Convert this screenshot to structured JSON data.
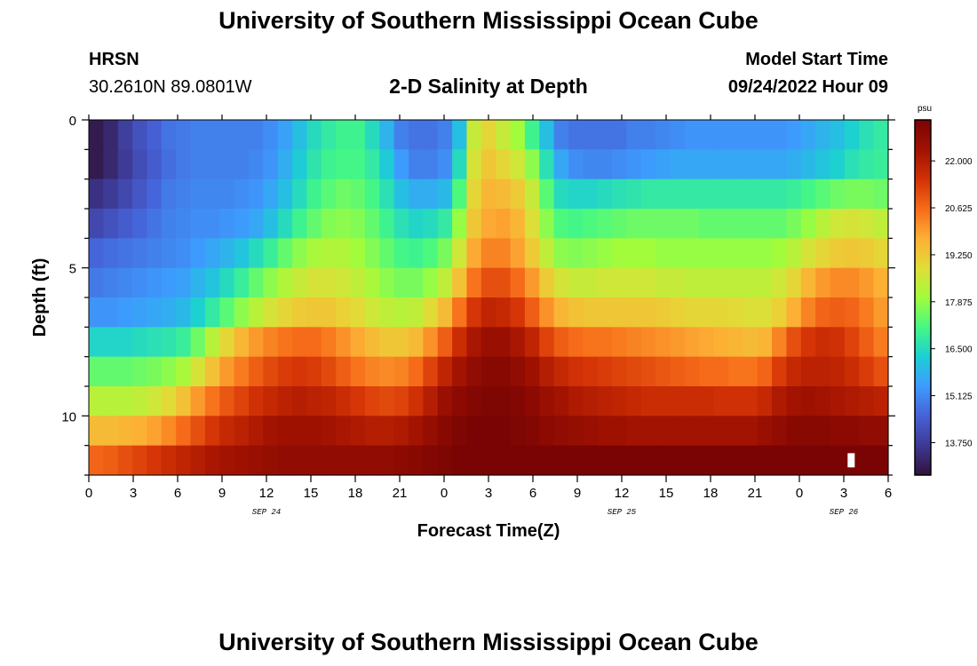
{
  "header": {
    "title": "University of Southern Mississippi Ocean Cube",
    "station": "HRSN",
    "coords": "30.2610N  89.0801W",
    "plot_title": "2-D Salinity at Depth",
    "model_start_label": "Model Start Time",
    "model_start_value": "09/24/2022 Hour 09"
  },
  "footer": {
    "title": "University of Southern Mississippi Ocean Cube"
  },
  "chart_data": {
    "type": "heatmap",
    "title": "2-D Salinity at Depth",
    "xlabel": "Forecast Time(Z)",
    "ylabel": "Depth (ft)",
    "x_hours": [
      0,
      54
    ],
    "x_tick_labels": [
      "0",
      "3",
      "6",
      "9",
      "12",
      "15",
      "18",
      "21",
      "0",
      "3",
      "6",
      "9",
      "12",
      "15",
      "18",
      "21",
      "0",
      "3",
      "6"
    ],
    "date_labels": [
      {
        "label": "SEP 24",
        "hour": 12
      },
      {
        "label": "SEP 25",
        "hour": 36
      },
      {
        "label": "SEP 26",
        "hour": 51
      }
    ],
    "ylim": [
      0,
      12
    ],
    "y_ticks": [
      0,
      5,
      10
    ],
    "y_minor_step": 1,
    "colorbar": {
      "unit": "psu",
      "vmin": 12.8,
      "vmax": 23.2,
      "tick_values": [
        13.75,
        15.125,
        16.5,
        17.875,
        19.25,
        20.625,
        22.0
      ],
      "tick_labels": [
        "13.750",
        "15.125",
        "16.500",
        "17.875",
        "19.250",
        "20.625",
        "22.000"
      ],
      "colors": [
        "#30123b",
        "#3e3994",
        "#4662d7",
        "#3e9bfe",
        "#1bcfd4",
        "#46f884",
        "#a2fc3c",
        "#e1dd37",
        "#fdaf35",
        "#f66b19",
        "#d23105",
        "#a11201",
        "#7a0403"
      ]
    },
    "depth_layers": [
      {
        "depth": 0.5,
        "values": [
          13.0,
          13.3,
          13.8,
          14.2,
          14.5,
          14.8,
          14.9,
          15.0,
          15.0,
          15.0,
          15.0,
          15.0,
          15.2,
          15.5,
          16.0,
          16.5,
          16.8,
          17.0,
          17.0,
          16.5,
          15.8,
          15.0,
          14.8,
          14.8,
          15.0,
          16.0,
          18.5,
          19.0,
          18.5,
          18.0,
          17.0,
          16.0,
          15.0,
          14.8,
          14.8,
          14.8,
          14.8,
          15.0,
          15.0,
          15.1,
          15.2,
          15.3,
          15.3,
          15.3,
          15.3,
          15.3,
          15.3,
          15.3,
          15.4,
          15.6,
          15.8,
          16.0,
          16.3,
          16.6,
          16.8
        ]
      },
      {
        "depth": 1.5,
        "values": [
          13.0,
          13.3,
          13.7,
          14.1,
          14.4,
          14.7,
          14.9,
          15.0,
          15.0,
          15.0,
          15.0,
          15.1,
          15.3,
          15.7,
          16.2,
          16.7,
          17.0,
          17.1,
          17.1,
          16.8,
          16.2,
          15.4,
          15.0,
          15.0,
          15.2,
          16.5,
          18.7,
          19.3,
          19.0,
          18.6,
          17.8,
          16.6,
          15.6,
          15.2,
          15.1,
          15.1,
          15.2,
          15.3,
          15.4,
          15.5,
          15.6,
          15.6,
          15.6,
          15.6,
          15.6,
          15.6,
          15.6,
          15.6,
          15.7,
          15.9,
          16.1,
          16.3,
          16.6,
          16.8,
          16.9
        ]
      },
      {
        "depth": 2.5,
        "values": [
          13.5,
          13.7,
          14.0,
          14.3,
          14.6,
          14.9,
          15.0,
          15.1,
          15.1,
          15.1,
          15.2,
          15.3,
          15.6,
          16.0,
          16.5,
          17.0,
          17.3,
          17.5,
          17.4,
          17.1,
          16.6,
          16.0,
          15.7,
          15.7,
          15.9,
          17.2,
          19.0,
          19.6,
          19.5,
          19.2,
          18.5,
          17.3,
          16.5,
          16.4,
          16.4,
          16.5,
          16.6,
          16.7,
          16.8,
          16.8,
          16.8,
          16.8,
          16.8,
          16.8,
          16.8,
          16.8,
          16.8,
          16.8,
          16.9,
          17.1,
          17.3,
          17.5,
          17.6,
          17.6,
          17.5
        ]
      },
      {
        "depth": 3.5,
        "values": [
          14.0,
          14.2,
          14.4,
          14.6,
          14.8,
          15.0,
          15.1,
          15.2,
          15.2,
          15.3,
          15.4,
          15.6,
          16.0,
          16.5,
          17.0,
          17.4,
          17.7,
          17.8,
          17.7,
          17.4,
          17.0,
          16.6,
          16.4,
          16.5,
          16.8,
          17.9,
          19.3,
          19.8,
          19.9,
          19.6,
          18.8,
          17.8,
          17.2,
          17.1,
          17.2,
          17.3,
          17.4,
          17.5,
          17.5,
          17.5,
          17.5,
          17.5,
          17.4,
          17.4,
          17.4,
          17.4,
          17.4,
          17.4,
          17.6,
          17.9,
          18.3,
          18.6,
          18.7,
          18.6,
          18.4
        ]
      },
      {
        "depth": 4.5,
        "values": [
          14.6,
          14.7,
          14.8,
          14.9,
          15.0,
          15.1,
          15.2,
          15.4,
          15.6,
          15.8,
          16.1,
          16.5,
          16.9,
          17.4,
          17.8,
          18.1,
          18.2,
          18.2,
          18.0,
          17.7,
          17.4,
          17.1,
          17.0,
          17.2,
          17.6,
          18.6,
          19.8,
          20.3,
          20.3,
          19.9,
          19.2,
          18.4,
          17.8,
          17.7,
          17.8,
          17.9,
          18.0,
          18.0,
          18.0,
          17.9,
          17.9,
          17.9,
          17.9,
          17.9,
          17.9,
          17.9,
          17.9,
          18.0,
          18.3,
          18.7,
          19.0,
          19.2,
          19.3,
          19.2,
          19.0
        ]
      },
      {
        "depth": 5.5,
        "values": [
          14.9,
          15.0,
          15.1,
          15.2,
          15.3,
          15.4,
          15.5,
          15.8,
          16.1,
          16.5,
          16.9,
          17.4,
          17.8,
          18.2,
          18.5,
          18.7,
          18.7,
          18.6,
          18.4,
          18.1,
          17.8,
          17.6,
          17.6,
          17.9,
          18.4,
          19.4,
          20.5,
          21.0,
          21.0,
          20.6,
          20.0,
          19.2,
          18.7,
          18.5,
          18.5,
          18.6,
          18.6,
          18.6,
          18.6,
          18.5,
          18.5,
          18.4,
          18.4,
          18.4,
          18.4,
          18.4,
          18.4,
          18.6,
          19.0,
          19.6,
          20.0,
          20.2,
          20.2,
          20.0,
          19.7
        ]
      },
      {
        "depth": 6.5,
        "values": [
          15.3,
          15.3,
          15.4,
          15.5,
          15.6,
          15.7,
          15.9,
          16.3,
          16.8,
          17.3,
          17.8,
          18.3,
          18.7,
          19.0,
          19.2,
          19.3,
          19.3,
          19.1,
          18.9,
          18.6,
          18.4,
          18.3,
          18.4,
          18.9,
          19.5,
          20.5,
          21.4,
          21.8,
          21.7,
          21.4,
          20.8,
          20.1,
          19.6,
          19.4,
          19.3,
          19.3,
          19.3,
          19.3,
          19.3,
          19.2,
          19.1,
          19.0,
          19.0,
          19.0,
          18.9,
          18.8,
          18.8,
          19.1,
          19.7,
          20.3,
          20.7,
          20.8,
          20.7,
          20.4,
          20.0
        ]
      },
      {
        "depth": 7.5,
        "values": [
          16.4,
          16.4,
          16.4,
          16.5,
          16.6,
          16.7,
          16.9,
          17.5,
          18.3,
          19.0,
          19.6,
          20.0,
          20.3,
          20.5,
          20.6,
          20.6,
          20.4,
          20.1,
          19.8,
          19.5,
          19.3,
          19.3,
          19.5,
          20.1,
          20.8,
          21.6,
          22.2,
          22.5,
          22.5,
          22.2,
          21.8,
          21.2,
          20.8,
          20.6,
          20.5,
          20.5,
          20.4,
          20.3,
          20.2,
          20.1,
          20.0,
          19.9,
          19.8,
          19.7,
          19.6,
          19.5,
          19.6,
          20.3,
          21.0,
          21.4,
          21.6,
          21.5,
          21.2,
          20.8,
          20.4
        ]
      },
      {
        "depth": 8.5,
        "values": [
          17.4,
          17.4,
          17.4,
          17.5,
          17.6,
          17.8,
          18.1,
          18.7,
          19.4,
          20.0,
          20.4,
          20.8,
          21.1,
          21.3,
          21.4,
          21.3,
          21.1,
          20.8,
          20.5,
          20.3,
          20.2,
          20.3,
          20.6,
          21.2,
          21.8,
          22.3,
          22.7,
          22.9,
          22.9,
          22.7,
          22.4,
          22.0,
          21.7,
          21.5,
          21.4,
          21.3,
          21.2,
          21.1,
          21.0,
          20.9,
          20.8,
          20.7,
          20.6,
          20.6,
          20.5,
          20.5,
          20.7,
          21.3,
          21.7,
          21.9,
          21.9,
          21.8,
          21.6,
          21.3,
          21.0
        ]
      },
      {
        "depth": 9.5,
        "values": [
          18.3,
          18.3,
          18.3,
          18.4,
          18.6,
          18.9,
          19.4,
          20.0,
          20.5,
          20.9,
          21.2,
          21.5,
          21.7,
          21.9,
          22.0,
          21.9,
          21.8,
          21.6,
          21.4,
          21.2,
          21.1,
          21.2,
          21.5,
          22.0,
          22.5,
          22.8,
          23.0,
          23.1,
          23.1,
          23.0,
          22.8,
          22.5,
          22.3,
          22.1,
          22.0,
          21.9,
          21.8,
          21.7,
          21.6,
          21.6,
          21.6,
          21.6,
          21.6,
          21.5,
          21.5,
          21.5,
          21.7,
          22.1,
          22.3,
          22.4,
          22.3,
          22.2,
          22.1,
          22.0,
          21.9
        ]
      },
      {
        "depth": 10.5,
        "values": [
          19.5,
          19.5,
          19.6,
          19.7,
          19.9,
          20.2,
          20.6,
          21.0,
          21.4,
          21.7,
          21.9,
          22.1,
          22.3,
          22.4,
          22.4,
          22.4,
          22.3,
          22.2,
          22.1,
          22.0,
          22.0,
          22.1,
          22.3,
          22.6,
          22.9,
          23.1,
          23.2,
          23.2,
          23.2,
          23.1,
          23.0,
          22.8,
          22.7,
          22.6,
          22.5,
          22.4,
          22.4,
          22.3,
          22.3,
          22.3,
          22.3,
          22.3,
          22.3,
          22.3,
          22.3,
          22.3,
          22.5,
          22.7,
          22.9,
          22.9,
          22.9,
          22.8,
          22.8,
          22.7,
          22.7
        ]
      },
      {
        "depth": 11.5,
        "values": [
          20.7,
          20.8,
          21.0,
          21.2,
          21.4,
          21.6,
          21.8,
          22.0,
          22.2,
          22.3,
          22.4,
          22.5,
          22.6,
          22.7,
          22.7,
          22.7,
          22.7,
          22.7,
          22.7,
          22.7,
          22.7,
          22.8,
          22.9,
          23.0,
          23.1,
          23.2,
          23.2,
          23.2,
          23.2,
          23.2,
          23.2,
          23.2,
          23.2,
          23.2,
          23.2,
          23.2,
          23.2,
          23.2,
          23.2,
          23.2,
          23.2,
          23.2,
          23.2,
          23.2,
          23.2,
          23.2,
          23.2,
          23.2,
          23.2,
          23.2,
          23.2,
          23.2,
          23.2,
          23.2,
          23.2
        ]
      }
    ],
    "missing_cells": [
      {
        "hour": 51.5,
        "depth": 11.5
      }
    ]
  }
}
